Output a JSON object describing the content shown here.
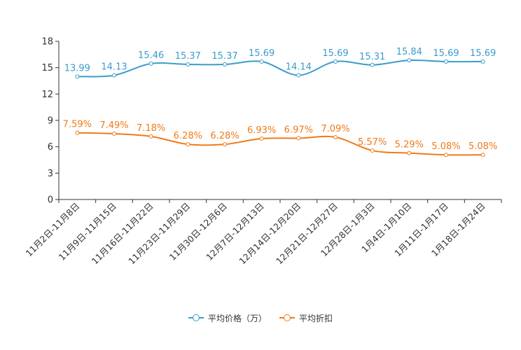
{
  "chart_data": {
    "type": "line",
    "categories": [
      "11月2日-11月8日",
      "11月9日-11月15日",
      "11月16日-11月22日",
      "11月23日-11月29日",
      "11月30日-12月6日",
      "12月7日-12月13日",
      "12月14日-12月20日",
      "12月21日-12月27日",
      "12月28日-1月3日",
      "1月4日-1月10日",
      "1月11日-1月17日",
      "1月18日-1月24日"
    ],
    "series": [
      {
        "name": "平均价格（万）",
        "color": "#3a9ccc",
        "values": [
          13.99,
          14.13,
          15.46,
          15.37,
          15.37,
          15.69,
          14.14,
          15.69,
          15.31,
          15.84,
          15.69,
          15.69
        ],
        "labels": [
          "13.99",
          "14.13",
          "15.46",
          "15.37",
          "15.37",
          "15.69",
          "14.14",
          "15.69",
          "15.31",
          "15.84",
          "15.69",
          "15.69"
        ]
      },
      {
        "name": "平均折扣",
        "color": "#f07a18",
        "values": [
          7.59,
          7.49,
          7.18,
          6.28,
          6.28,
          6.93,
          6.97,
          7.09,
          5.57,
          5.29,
          5.08,
          5.08
        ],
        "labels": [
          "7.59%",
          "7.49%",
          "7.18%",
          "6.28%",
          "6.28%",
          "6.93%",
          "6.97%",
          "7.09%",
          "5.57%",
          "5.29%",
          "5.08%",
          "5.08%"
        ]
      }
    ],
    "yticks": [
      0,
      3,
      6,
      9,
      12,
      15,
      18
    ],
    "ylim": [
      0,
      18
    ],
    "title": "",
    "xlabel": "",
    "ylabel": "",
    "legend_position": "bottom-center"
  },
  "legend": {
    "items": [
      {
        "label": "平均价格（万）",
        "color": "#3a9ccc"
      },
      {
        "label": "平均折扣",
        "color": "#f07a18"
      }
    ]
  }
}
